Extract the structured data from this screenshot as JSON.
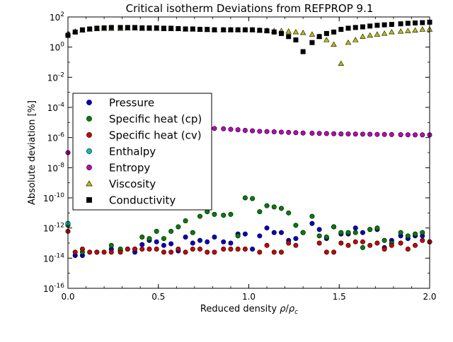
{
  "chart_data": {
    "type": "scatter",
    "title": "Critical isotherm Deviations from REFPROP 9.1",
    "xlabel": "Reduced density ρ/ρc",
    "xlabel_prefix": "Reduced density ",
    "xlabel_rho": "ρ",
    "xlabel_rho_c": "ρ",
    "xlabel_c": "c",
    "ylabel": "Absolute deviation [%]",
    "y_scale": "log",
    "xlim": [
      0.0,
      2.0
    ],
    "ylim": [
      1e-16,
      100
    ],
    "x_ticks": [
      {
        "value": 0.0,
        "label": "0.0"
      },
      {
        "value": 0.5,
        "label": "0.5"
      },
      {
        "value": 1.0,
        "label": "1.0"
      },
      {
        "value": 1.5,
        "label": "1.5"
      },
      {
        "value": 2.0,
        "label": "2.0"
      }
    ],
    "y_ticks": [
      {
        "exp": -16,
        "base": "10",
        "sup": "-16"
      },
      {
        "exp": -14,
        "base": "10",
        "sup": "-14"
      },
      {
        "exp": -12,
        "base": "10",
        "sup": "-12"
      },
      {
        "exp": -10,
        "base": "10",
        "sup": "-10"
      },
      {
        "exp": -8,
        "base": "10",
        "sup": "-8"
      },
      {
        "exp": -6,
        "base": "10",
        "sup": "-6"
      },
      {
        "exp": -4,
        "base": "10",
        "sup": "-4"
      },
      {
        "exp": -2,
        "base": "10",
        "sup": "-2"
      },
      {
        "exp": 0,
        "base": "10",
        "sup": "0"
      },
      {
        "exp": 2,
        "base": "10",
        "sup": "2"
      }
    ],
    "grid": false,
    "legend_position": "left",
    "series": [
      {
        "name": "Pressure",
        "marker": "circle",
        "color": "#0000cc",
        "x": [
          0.0,
          0.04,
          0.08,
          0.16,
          0.24,
          0.29,
          0.33,
          0.37,
          0.41,
          0.45,
          0.49,
          0.53,
          0.57,
          0.61,
          0.65,
          0.69,
          0.73,
          0.77,
          0.81,
          0.86,
          0.9,
          0.94,
          0.98,
          1.02,
          1.06,
          1.1,
          1.14,
          1.18,
          1.22,
          1.26,
          1.3,
          1.35,
          1.39,
          1.43,
          1.47,
          1.51,
          1.55,
          1.59,
          1.63,
          1.67,
          1.71,
          1.75,
          1.79,
          1.84,
          1.88,
          1.92,
          1.96,
          2.0
        ],
        "y": [
          2e-12,
          1.5e-14,
          1.5e-14,
          2.5e-14,
          4e-14,
          3e-14,
          4e-14,
          2.5e-14,
          8e-14,
          1.5e-13,
          1.2e-13,
          7e-14,
          9e-14,
          3e-14,
          2.5e-13,
          1e-13,
          1.5e-13,
          1.2e-13,
          2.5e-13,
          1.2e-13,
          1e-13,
          4e-13,
          4e-13,
          4e-14,
          3e-13,
          1e-12,
          5e-13,
          5e-13,
          1.5e-13,
          2e-13,
          5e-13,
          2e-12,
          8e-13,
          2e-13,
          1.2e-12,
          4e-13,
          4e-13,
          1e-12,
          5e-13,
          8e-13,
          8e-13,
          5e-14,
          1.5e-13,
          3e-13,
          2e-13,
          3e-13,
          3e-13,
          1.2e-13
        ]
      },
      {
        "name": "Specific heat (cp)",
        "marker": "circle",
        "color": "#008000",
        "x": [
          0.0,
          0.08,
          0.24,
          0.29,
          0.37,
          0.41,
          0.45,
          0.49,
          0.53,
          0.57,
          0.61,
          0.65,
          0.69,
          0.73,
          0.77,
          0.81,
          0.86,
          0.9,
          0.94,
          0.98,
          1.02,
          1.06,
          1.1,
          1.14,
          1.18,
          1.22,
          1.26,
          1.3,
          1.35,
          1.39,
          1.43,
          1.47,
          1.51,
          1.55,
          1.59,
          1.63,
          1.67,
          1.71,
          1.75,
          1.79,
          1.84,
          1.88,
          1.92,
          1.96,
          2.0
        ],
        "y": [
          1.5e-12,
          2.5e-14,
          7e-14,
          4e-14,
          4e-14,
          2.5e-13,
          2e-13,
          6e-13,
          2e-13,
          6e-13,
          1.2e-12,
          3e-12,
          5e-13,
          6e-12,
          1.2e-11,
          8e-12,
          7e-12,
          8e-12,
          3e-13,
          1e-10,
          9e-11,
          1.2e-11,
          3e-11,
          2.5e-11,
          2e-11,
          1e-11,
          1.5e-12,
          5e-13,
          6e-12,
          3e-13,
          2.5e-13,
          1.2e-12,
          5e-13,
          5e-13,
          5e-13,
          5e-14,
          8e-13,
          1e-12,
          1.5e-13,
          1e-13,
          5e-13,
          3e-13,
          4e-13,
          5e-13,
          1.2e-13
        ]
      },
      {
        "name": "Specific heat (cv)",
        "marker": "circle",
        "color": "#cc0000",
        "x": [
          0.0,
          0.04,
          0.08,
          0.12,
          0.16,
          0.2,
          0.24,
          0.29,
          0.33,
          0.37,
          0.41,
          0.45,
          0.49,
          0.53,
          0.57,
          0.61,
          0.65,
          0.69,
          0.73,
          0.77,
          0.81,
          0.86,
          0.9,
          0.94,
          0.98,
          1.06,
          1.1,
          1.14,
          1.18,
          1.22,
          1.26,
          1.39,
          1.43,
          1.47,
          1.51,
          1.55,
          1.59,
          1.63,
          1.67,
          1.71,
          1.75,
          1.79,
          1.84,
          1.88,
          1.92,
          1.96,
          2.0
        ],
        "y": [
          6e-13,
          2.5e-14,
          4e-14,
          2.5e-14,
          2.5e-14,
          2.5e-14,
          2.5e-14,
          2.5e-14,
          4e-14,
          4e-14,
          4e-14,
          4e-14,
          4e-14,
          2.5e-14,
          2.5e-14,
          4e-14,
          2.5e-14,
          4e-14,
          4e-14,
          2.5e-14,
          2.5e-14,
          4e-14,
          4e-14,
          4e-14,
          4e-14,
          2.5e-14,
          7e-14,
          2.5e-14,
          2.5e-14,
          1e-13,
          7e-14,
          1e-13,
          2.5e-14,
          2.5e-14,
          1e-13,
          7e-14,
          1.2e-13,
          1.2e-13,
          7e-14,
          1e-13,
          4e-14,
          7e-14,
          1e-13,
          4e-14,
          7e-14,
          1.5e-13,
          1.2e-13
        ]
      },
      {
        "name": "Enthalpy",
        "marker": "circle",
        "color": "#00bfbf",
        "x": [
          0.0
        ],
        "y": [
          2e-12
        ]
      },
      {
        "name": "Entropy",
        "marker": "circle",
        "color": "#bf00bf",
        "x": [
          0.0,
          0.81,
          0.86,
          0.9,
          0.94,
          0.98,
          1.02,
          1.06,
          1.1,
          1.14,
          1.18,
          1.22,
          1.26,
          1.3,
          1.35,
          1.39,
          1.43,
          1.47,
          1.51,
          1.55,
          1.59,
          1.63,
          1.67,
          1.71,
          1.75,
          1.79,
          1.84,
          1.88,
          1.92,
          1.96,
          2.0
        ],
        "y": [
          1e-07,
          4e-06,
          3.8e-06,
          3.5e-06,
          3.3e-06,
          3e-06,
          2.8e-06,
          2.6e-06,
          2.5e-06,
          2.4e-06,
          2.3e-06,
          2.2e-06,
          2.1e-06,
          2e-06,
          1.95e-06,
          1.9e-06,
          1.85e-06,
          1.8e-06,
          1.75e-06,
          1.72e-06,
          1.7e-06,
          1.68e-06,
          1.65e-06,
          1.62e-06,
          1.6e-06,
          1.58e-06,
          1.55e-06,
          1.52e-06,
          1.5e-06,
          1.5e-06,
          1.5e-06
        ]
      },
      {
        "name": "Viscosity",
        "marker": "triangle",
        "color": "#bfbf00",
        "x": [
          0.0,
          0.04,
          0.08,
          0.12,
          0.16,
          0.2,
          0.24,
          0.29,
          0.33,
          0.37,
          0.41,
          0.45,
          0.49,
          0.53,
          0.57,
          0.61,
          0.65,
          0.69,
          0.73,
          0.77,
          0.81,
          0.86,
          0.9,
          0.94,
          0.98,
          1.02,
          1.06,
          1.1,
          1.14,
          1.18,
          1.22,
          1.26,
          1.3,
          1.35,
          1.39,
          1.43,
          1.47,
          1.51,
          1.55,
          1.59,
          1.63,
          1.67,
          1.71,
          1.75,
          1.79,
          1.84,
          1.88,
          1.92,
          1.96,
          2.0
        ],
        "y": [
          8,
          11,
          13,
          15,
          16,
          17,
          17,
          17,
          18,
          18,
          17,
          17,
          17,
          16,
          16,
          16,
          15,
          15,
          15,
          14,
          14,
          14,
          14,
          14,
          14,
          14,
          13,
          13,
          12,
          12,
          11,
          10,
          9,
          7,
          5,
          3,
          1.5,
          0.08,
          2,
          3,
          5,
          6,
          7,
          8,
          10,
          11,
          12,
          13,
          15,
          15
        ]
      },
      {
        "name": "Conductivity",
        "marker": "square",
        "color": "#000000",
        "x": [
          0.0,
          0.04,
          0.08,
          0.12,
          0.16,
          0.2,
          0.24,
          0.29,
          0.33,
          0.37,
          0.41,
          0.45,
          0.49,
          0.53,
          0.57,
          0.61,
          0.65,
          0.69,
          0.73,
          0.77,
          0.81,
          0.86,
          0.9,
          0.94,
          0.98,
          1.02,
          1.06,
          1.1,
          1.14,
          1.18,
          1.22,
          1.26,
          1.3,
          1.35,
          1.39,
          1.43,
          1.47,
          1.51,
          1.55,
          1.59,
          1.63,
          1.67,
          1.71,
          1.75,
          1.79,
          1.84,
          1.88,
          1.92,
          1.96,
          2.0
        ],
        "y": [
          6,
          10,
          14,
          16,
          18,
          19,
          20,
          20,
          20,
          20,
          19,
          19,
          19,
          18,
          18,
          17,
          16,
          16,
          15,
          15,
          14,
          14,
          14,
          14,
          14,
          14,
          13,
          12,
          10,
          8,
          5,
          3,
          0.5,
          2,
          5,
          8,
          10,
          15,
          18,
          20,
          22,
          25,
          28,
          30,
          32,
          35,
          38,
          40,
          42,
          45
        ]
      }
    ]
  }
}
